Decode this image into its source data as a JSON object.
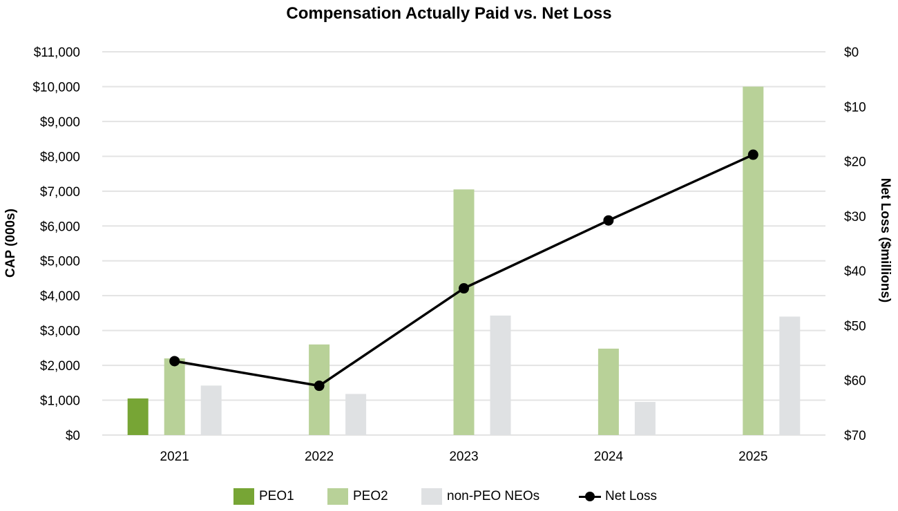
{
  "chart_data": {
    "type": "bar",
    "title": "Compensation Actually Paid vs. Net Loss",
    "ylabel": "CAP (000s)",
    "y2label": "Net Loss ($millions)",
    "categories": [
      "2021",
      "2022",
      "2023",
      "2024",
      "2025"
    ],
    "ylim": [
      0,
      11000
    ],
    "y2lim": [
      0,
      70
    ],
    "y2_inverted": true,
    "y_ticks": [
      "$0",
      "$1,000",
      "$2,000",
      "$3,000",
      "$4,000",
      "$5,000",
      "$6,000",
      "$7,000",
      "$8,000",
      "$9,000",
      "$10,000",
      "$11,000"
    ],
    "y2_ticks": [
      "$0",
      "$10",
      "$20",
      "$30",
      "$40",
      "$50",
      "$60",
      "$70"
    ],
    "grid": true,
    "legend_position": "bottom",
    "series": [
      {
        "name": "PEO1",
        "type": "bar",
        "color": "#77a535",
        "values": [
          1050,
          null,
          null,
          null,
          null
        ]
      },
      {
        "name": "PEO2",
        "type": "bar",
        "color": "#b8d198",
        "values": [
          2200,
          2600,
          7050,
          2480,
          10000
        ]
      },
      {
        "name": "non-PEO NEOs",
        "type": "bar",
        "color": "#dfe1e3",
        "values": [
          1420,
          1180,
          3430,
          950,
          3400
        ]
      },
      {
        "name": "Net Loss",
        "type": "line",
        "axis": "right",
        "color": "#000000",
        "values": [
          56.5,
          61.0,
          43.2,
          30.8,
          18.8
        ]
      }
    ]
  }
}
